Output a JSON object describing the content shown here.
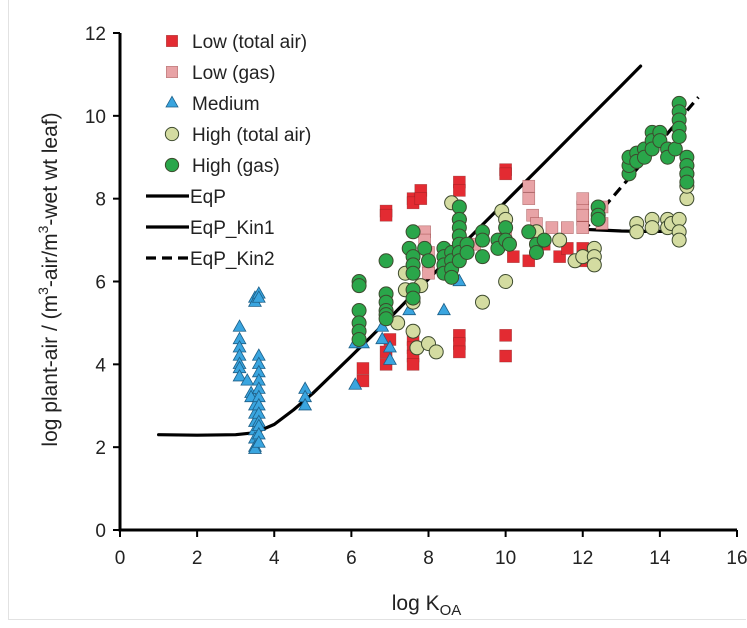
{
  "chart_data": {
    "type": "scatter",
    "xlabel": "log K",
    "xlabel_sub": "OA",
    "ylabel_parts": [
      "log plant-air  / (m",
      "3",
      "-air/m",
      "3",
      "-wet wt leaf)"
    ],
    "xlim": [
      0,
      16
    ],
    "ylim": [
      0,
      12
    ],
    "x_ticks": [
      0,
      2,
      4,
      6,
      8,
      10,
      12,
      14,
      16
    ],
    "y_ticks": [
      0,
      2,
      4,
      6,
      8,
      10,
      12
    ],
    "grid": false,
    "legend_position": "top-left",
    "colors": {
      "low_total_air": "#e32b32",
      "low_gas": "#e8a3a6",
      "medium": "#3aa5df",
      "high_total_air": "#d4dca1",
      "high_gas": "#2aa64a",
      "line": "#000000"
    },
    "legend": [
      {
        "label": "Low (total air)",
        "marker": "square",
        "color": "#e32b32"
      },
      {
        "label": "Low (gas)",
        "marker": "square",
        "color": "#e8a3a6"
      },
      {
        "label": "Medium",
        "marker": "triangle",
        "color": "#3aa5df"
      },
      {
        "label": "High (total air)",
        "marker": "circle",
        "color": "#d4dca1"
      },
      {
        "label": "High (gas)",
        "marker": "circle",
        "color": "#2aa64a"
      },
      {
        "label": "EqP",
        "marker": "line",
        "color": "#000000"
      },
      {
        "label": "EqP_Kin1",
        "marker": "line",
        "color": "#000000"
      },
      {
        "label": "EqP_Kin2",
        "marker": "dashed",
        "color": "#000000"
      }
    ],
    "lines": [
      {
        "name": "EqP",
        "style": "solid",
        "x": [
          1.0,
          2.0,
          3.0,
          3.5,
          4.0,
          4.5,
          5.0,
          5.5,
          6.0,
          6.5,
          7.0,
          7.5,
          8.0,
          9.0,
          10.0,
          11.0,
          12.0,
          13.0,
          13.5
        ],
        "y": [
          2.3,
          2.29,
          2.3,
          2.35,
          2.55,
          2.9,
          3.3,
          3.75,
          4.2,
          4.66,
          5.12,
          5.6,
          6.06,
          7.0,
          7.93,
          8.86,
          9.8,
          10.73,
          11.2
        ]
      },
      {
        "name": "EqP_Kin1",
        "style": "solid",
        "x": [
          12.0,
          12.5,
          13.0,
          13.5,
          14.0,
          14.5
        ],
        "y": [
          7.26,
          7.24,
          7.22,
          7.21,
          7.21,
          7.21
        ]
      },
      {
        "name": "EqP_Kin2",
        "style": "dashed",
        "x": [
          12.0,
          13.0,
          14.0,
          15.0
        ],
        "y": [
          7.2,
          8.28,
          9.36,
          10.45
        ]
      }
    ],
    "series": [
      {
        "name": "Low (total air)",
        "marker": "square",
        "color": "#e32b32",
        "points": [
          [
            6.3,
            3.9
          ],
          [
            6.3,
            3.6
          ],
          [
            6.9,
            7.7
          ],
          [
            6.9,
            7.6
          ],
          [
            6.9,
            4.0
          ],
          [
            6.9,
            4.3
          ],
          [
            7.0,
            4.6
          ],
          [
            7.6,
            8.0
          ],
          [
            7.6,
            7.9
          ],
          [
            7.6,
            4.6
          ],
          [
            7.6,
            4.4
          ],
          [
            7.6,
            4.2
          ],
          [
            7.6,
            4.0
          ],
          [
            7.8,
            8.2
          ],
          [
            7.8,
            8.0
          ],
          [
            8.8,
            8.4
          ],
          [
            8.8,
            8.2
          ],
          [
            8.8,
            4.7
          ],
          [
            8.8,
            4.5
          ],
          [
            8.8,
            4.3
          ],
          [
            10.0,
            8.7
          ],
          [
            10.0,
            8.6
          ],
          [
            10.0,
            4.7
          ],
          [
            10.0,
            4.2
          ],
          [
            10.2,
            6.6
          ],
          [
            10.6,
            6.5
          ],
          [
            11.0,
            6.9
          ],
          [
            11.4,
            6.6
          ],
          [
            11.6,
            6.8
          ],
          [
            12.0,
            6.5
          ],
          [
            12.0,
            6.8
          ]
        ]
      },
      {
        "name": "Low (gas)",
        "marker": "square",
        "color": "#e8a3a6",
        "points": [
          [
            7.9,
            7.2
          ],
          [
            7.9,
            7.0
          ],
          [
            8.0,
            6.7
          ],
          [
            8.0,
            6.4
          ],
          [
            8.0,
            6.2
          ],
          [
            8.8,
            7.0
          ],
          [
            8.8,
            6.8
          ],
          [
            9.0,
            6.9
          ],
          [
            9.2,
            6.9
          ],
          [
            10.6,
            8.3
          ],
          [
            10.6,
            8.0
          ],
          [
            10.7,
            7.6
          ],
          [
            10.8,
            7.4
          ],
          [
            11.2,
            7.3
          ],
          [
            11.6,
            7.3
          ],
          [
            12.0,
            7.5
          ],
          [
            12.0,
            7.8
          ],
          [
            12.0,
            8.0
          ],
          [
            12.0,
            7.6
          ],
          [
            12.0,
            7.3
          ],
          [
            12.4,
            7.6
          ],
          [
            12.5,
            7.4
          ],
          [
            12.5,
            7.8
          ],
          [
            10.0,
            7.1
          ]
        ]
      },
      {
        "name": "Medium",
        "marker": "triangle",
        "color": "#3aa5df",
        "points": [
          [
            3.1,
            4.9
          ],
          [
            3.1,
            4.6
          ],
          [
            3.1,
            4.4
          ],
          [
            3.1,
            4.2
          ],
          [
            3.1,
            4.0
          ],
          [
            3.1,
            3.9
          ],
          [
            3.1,
            3.7
          ],
          [
            3.3,
            3.6
          ],
          [
            3.4,
            3.3
          ],
          [
            3.4,
            3.2
          ],
          [
            3.5,
            5.6
          ],
          [
            3.5,
            5.5
          ],
          [
            3.5,
            3.0
          ],
          [
            3.5,
            2.8
          ],
          [
            3.5,
            2.6
          ],
          [
            3.5,
            2.4
          ],
          [
            3.5,
            2.2
          ],
          [
            3.5,
            2.0
          ],
          [
            3.5,
            1.95
          ],
          [
            3.6,
            5.7
          ],
          [
            3.6,
            5.6
          ],
          [
            3.6,
            4.2
          ],
          [
            3.6,
            4.0
          ],
          [
            3.6,
            3.8
          ],
          [
            3.6,
            3.6
          ],
          [
            3.6,
            3.4
          ],
          [
            3.6,
            3.2
          ],
          [
            3.6,
            3.0
          ],
          [
            3.6,
            2.8
          ],
          [
            3.6,
            2.6
          ],
          [
            3.6,
            2.5
          ],
          [
            3.6,
            2.3
          ],
          [
            3.6,
            2.1
          ],
          [
            4.8,
            3.4
          ],
          [
            4.8,
            3.2
          ],
          [
            4.8,
            3.0
          ],
          [
            6.1,
            4.5
          ],
          [
            6.1,
            3.5
          ],
          [
            6.3,
            4.5
          ],
          [
            6.8,
            4.9
          ],
          [
            6.8,
            4.6
          ],
          [
            7.0,
            4.4
          ],
          [
            7.0,
            4.1
          ],
          [
            7.5,
            5.3
          ],
          [
            8.4,
            5.3
          ],
          [
            8.8,
            6.0
          ]
        ]
      },
      {
        "name": "High (total air)",
        "marker": "circle",
        "color": "#d4dca1",
        "points": [
          [
            7.2,
            5.0
          ],
          [
            7.4,
            6.2
          ],
          [
            7.4,
            5.8
          ],
          [
            7.6,
            5.5
          ],
          [
            7.6,
            4.8
          ],
          [
            7.7,
            4.4
          ],
          [
            7.8,
            5.9
          ],
          [
            8.0,
            4.5
          ],
          [
            8.2,
            4.3
          ],
          [
            8.6,
            7.9
          ],
          [
            8.8,
            7.5
          ],
          [
            9.4,
            5.5
          ],
          [
            9.9,
            7.7
          ],
          [
            10.0,
            7.5
          ],
          [
            10.0,
            6.0
          ],
          [
            10.8,
            7.2
          ],
          [
            11.4,
            7.0
          ],
          [
            11.8,
            6.5
          ],
          [
            12.0,
            6.6
          ],
          [
            12.3,
            6.8
          ],
          [
            12.3,
            6.6
          ],
          [
            12.3,
            6.4
          ],
          [
            13.4,
            7.4
          ],
          [
            13.4,
            7.2
          ],
          [
            13.8,
            7.5
          ],
          [
            13.8,
            7.3
          ],
          [
            14.2,
            7.5
          ],
          [
            14.2,
            7.3
          ],
          [
            14.3,
            7.4
          ],
          [
            14.5,
            7.5
          ],
          [
            14.5,
            7.2
          ],
          [
            14.5,
            7.0
          ],
          [
            14.7,
            8.0
          ],
          [
            14.7,
            8.3
          ],
          [
            14.7,
            8.6
          ],
          [
            14.7,
            8.8
          ]
        ]
      },
      {
        "name": "High (gas)",
        "marker": "circle",
        "color": "#2aa64a",
        "points": [
          [
            6.2,
            6.0
          ],
          [
            6.2,
            5.9
          ],
          [
            6.2,
            5.3
          ],
          [
            6.2,
            5.0
          ],
          [
            6.2,
            4.8
          ],
          [
            6.2,
            4.6
          ],
          [
            6.9,
            6.5
          ],
          [
            6.9,
            5.7
          ],
          [
            6.9,
            5.5
          ],
          [
            6.9,
            5.3
          ],
          [
            6.9,
            5.2
          ],
          [
            6.9,
            5.1
          ],
          [
            7.5,
            6.8
          ],
          [
            7.6,
            7.2
          ],
          [
            7.6,
            6.6
          ],
          [
            7.6,
            6.4
          ],
          [
            7.6,
            6.2
          ],
          [
            7.6,
            5.8
          ],
          [
            7.6,
            5.6
          ],
          [
            7.9,
            6.8
          ],
          [
            8.0,
            6.5
          ],
          [
            8.4,
            6.8
          ],
          [
            8.4,
            6.6
          ],
          [
            8.4,
            6.4
          ],
          [
            8.4,
            6.2
          ],
          [
            8.6,
            6.7
          ],
          [
            8.6,
            6.5
          ],
          [
            8.6,
            6.3
          ],
          [
            8.6,
            6.1
          ],
          [
            8.8,
            7.8
          ],
          [
            8.8,
            7.5
          ],
          [
            8.8,
            7.3
          ],
          [
            8.8,
            7.1
          ],
          [
            8.8,
            6.9
          ],
          [
            8.8,
            6.7
          ],
          [
            8.8,
            6.5
          ],
          [
            9.0,
            6.9
          ],
          [
            9.0,
            6.7
          ],
          [
            9.4,
            7.2
          ],
          [
            9.4,
            7.0
          ],
          [
            9.4,
            6.6
          ],
          [
            9.8,
            7.0
          ],
          [
            9.8,
            6.8
          ],
          [
            10.0,
            7.3
          ],
          [
            10.0,
            7.0
          ],
          [
            10.1,
            6.9
          ],
          [
            10.6,
            7.2
          ],
          [
            10.8,
            6.9
          ],
          [
            10.8,
            6.7
          ],
          [
            11.0,
            7.0
          ],
          [
            12.4,
            7.8
          ],
          [
            12.4,
            7.6
          ],
          [
            12.4,
            7.5
          ],
          [
            13.2,
            8.6
          ],
          [
            13.2,
            8.8
          ],
          [
            13.2,
            9.0
          ],
          [
            13.4,
            9.1
          ],
          [
            13.4,
            8.9
          ],
          [
            13.6,
            9.2
          ],
          [
            13.6,
            9.0
          ],
          [
            13.8,
            9.6
          ],
          [
            13.8,
            9.4
          ],
          [
            13.8,
            9.2
          ],
          [
            14.0,
            9.6
          ],
          [
            14.0,
            9.4
          ],
          [
            14.2,
            9.2
          ],
          [
            14.2,
            9.0
          ],
          [
            14.4,
            9.2
          ],
          [
            14.5,
            10.3
          ],
          [
            14.5,
            10.1
          ],
          [
            14.5,
            9.9
          ],
          [
            14.5,
            9.7
          ],
          [
            14.5,
            9.5
          ],
          [
            14.7,
            9.0
          ],
          [
            14.7,
            8.8
          ],
          [
            14.7,
            8.6
          ],
          [
            14.7,
            8.4
          ]
        ]
      }
    ]
  }
}
